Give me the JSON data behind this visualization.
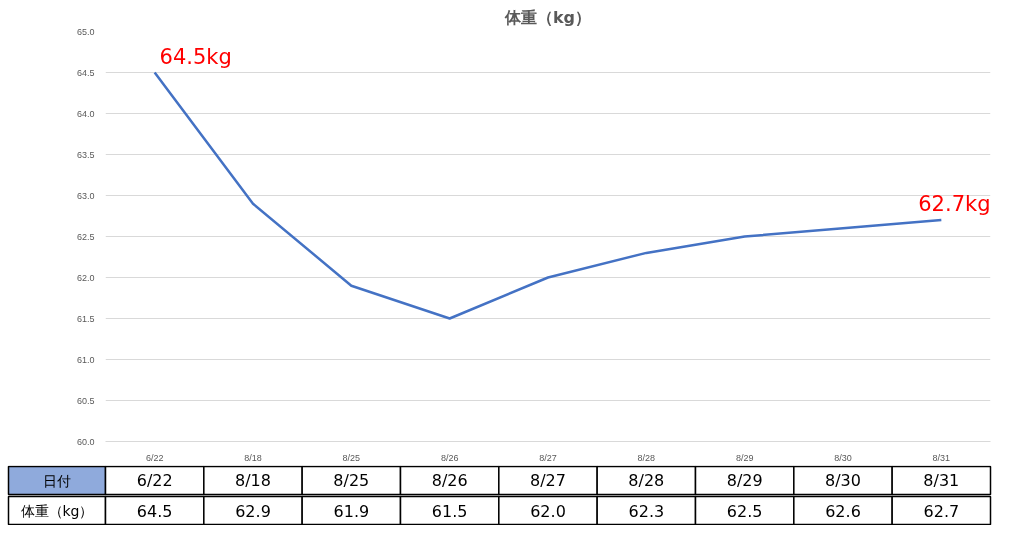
{
  "chart_data": {
    "type": "line",
    "title": "体重（kg）",
    "categories": [
      "6/22",
      "8/18",
      "8/25",
      "8/26",
      "8/27",
      "8/28",
      "8/29",
      "8/30",
      "8/31"
    ],
    "series": [
      {
        "color": "#4472c4",
        "values": [
          64.5,
          62.9,
          61.9,
          61.5,
          62.0,
          62.3,
          62.5,
          62.6,
          62.7
        ],
        "value_labels": [
          "64.5",
          "62.9",
          "61.9",
          "61.5",
          "62.0",
          "62.3",
          "62.5",
          "62.6",
          "62.7"
        ]
      }
    ],
    "ylim": [
      60,
      65
    ],
    "yticks": [
      {
        "value": 60,
        "label": "60.0"
      },
      {
        "value": 60.5,
        "label": "60.5"
      },
      {
        "value": 61,
        "label": "61.0"
      },
      {
        "value": 61.5,
        "label": "61.5"
      },
      {
        "value": 62,
        "label": "62.0"
      },
      {
        "value": 62.5,
        "label": "62.5"
      },
      {
        "value": 63,
        "label": "63.0"
      },
      {
        "value": 63.5,
        "label": "63.5"
      },
      {
        "value": 64,
        "label": "64.0"
      },
      {
        "value": 64.5,
        "label": "64.5"
      },
      {
        "value": 65,
        "label": "65.0"
      }
    ],
    "grid": "y",
    "marker": "none",
    "line_style": "solid",
    "annotations": [
      {
        "text": "64.5kg",
        "x": "6/22",
        "y": 64.5
      },
      {
        "text": "62.7kg",
        "x": "8/31",
        "y": 62.7
      },
      "日付",
      "体重（kg）"
    ]
  }
}
